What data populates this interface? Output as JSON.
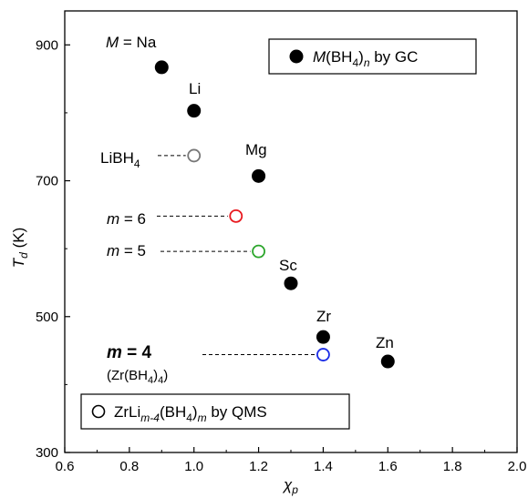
{
  "chart_data": {
    "type": "scatter",
    "title": "",
    "xlabel": "χp",
    "ylabel": "Td (K)",
    "xlim": [
      0.6,
      2.0
    ],
    "ylim": [
      300,
      950
    ],
    "grid": false,
    "x_ticks": [
      "0.6",
      "0.8",
      "1.0",
      "1.2",
      "1.4",
      "1.6",
      "1.8",
      "2.0"
    ],
    "y_ticks": [
      "300",
      "500",
      "700",
      "900"
    ],
    "legend": [
      {
        "marker": "filled-circle",
        "label": "M(BH4)n by GC",
        "placement": "top-right"
      },
      {
        "marker": "open-circle",
        "label": "ZrLim-4(BH4)m by QMS",
        "placement": "bottom-left"
      }
    ],
    "series": [
      {
        "name": "M(BH4)n by GC",
        "marker": "filled",
        "color": "#000000",
        "points": [
          {
            "label": "M = Na",
            "x": 0.9,
            "y": 867
          },
          {
            "label": "Li",
            "x": 1.0,
            "y": 803
          },
          {
            "label": "Mg",
            "x": 1.2,
            "y": 707
          },
          {
            "label": "Sc",
            "x": 1.3,
            "y": 549
          },
          {
            "label": "Zr",
            "x": 1.4,
            "y": 470
          },
          {
            "label": "Zn",
            "x": 1.6,
            "y": 434
          }
        ]
      },
      {
        "name": "ZrLim-4(BH4)m by QMS",
        "marker": "open",
        "points": [
          {
            "label": "LiBH4",
            "x": 1.0,
            "y": 737,
            "color": "#777777"
          },
          {
            "label": "m = 6",
            "x": 1.13,
            "y": 648,
            "color": "#e8191f"
          },
          {
            "label": "m = 5",
            "x": 1.2,
            "y": 596,
            "color": "#2aa52a"
          },
          {
            "label": "m = 4",
            "sublabel": "(Zr(BH4)4)",
            "x": 1.4,
            "y": 444,
            "color": "#1a2be6"
          }
        ]
      }
    ]
  }
}
